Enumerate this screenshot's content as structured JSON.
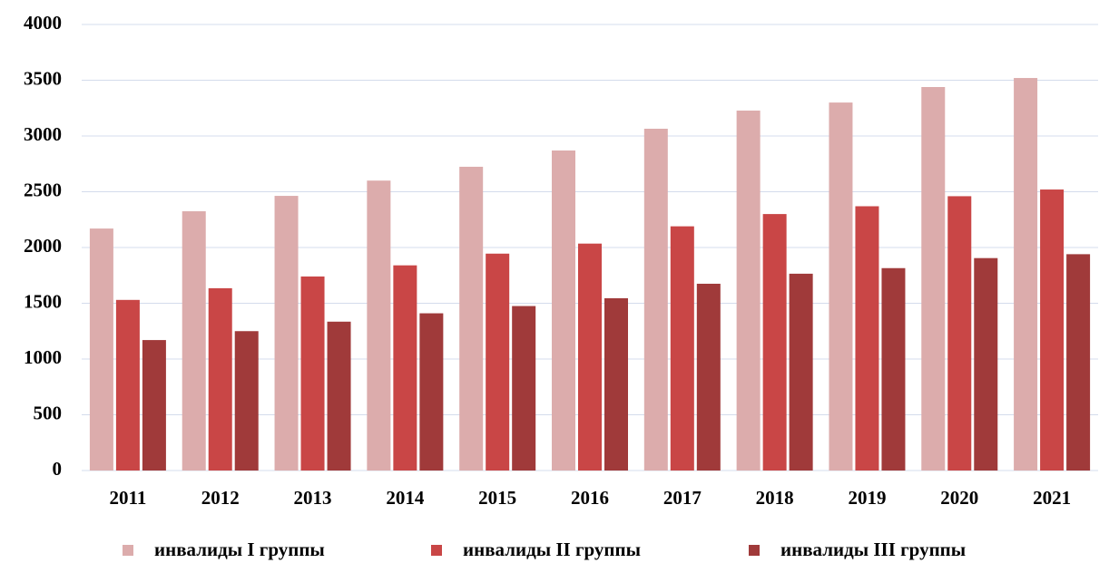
{
  "chart_data": {
    "type": "bar",
    "categories": [
      "2011",
      "2012",
      "2013",
      "2014",
      "2015",
      "2016",
      "2017",
      "2018",
      "2019",
      "2020",
      "2021"
    ],
    "series": [
      {
        "name": "инвалиды I группы",
        "color": "#dcacac",
        "values": [
          2170,
          2325,
          2463,
          2600,
          2724,
          2870,
          3065,
          3228,
          3300,
          3439,
          3520
        ]
      },
      {
        "name": "инвалиды II группы",
        "color": "#c94646",
        "values": [
          1530,
          1635,
          1740,
          1840,
          1945,
          2035,
          2190,
          2300,
          2370,
          2460,
          2520
        ]
      },
      {
        "name": "инвалиды III группы",
        "color": "#a03a3a",
        "values": [
          1170,
          1250,
          1335,
          1410,
          1475,
          1545,
          1675,
          1765,
          1815,
          1905,
          1940
        ]
      }
    ],
    "ylim": [
      0,
      4000
    ],
    "yticks": [
      0,
      500,
      1000,
      1500,
      2000,
      2500,
      3000,
      3500,
      4000
    ],
    "grid": true,
    "legend": "bottom"
  }
}
